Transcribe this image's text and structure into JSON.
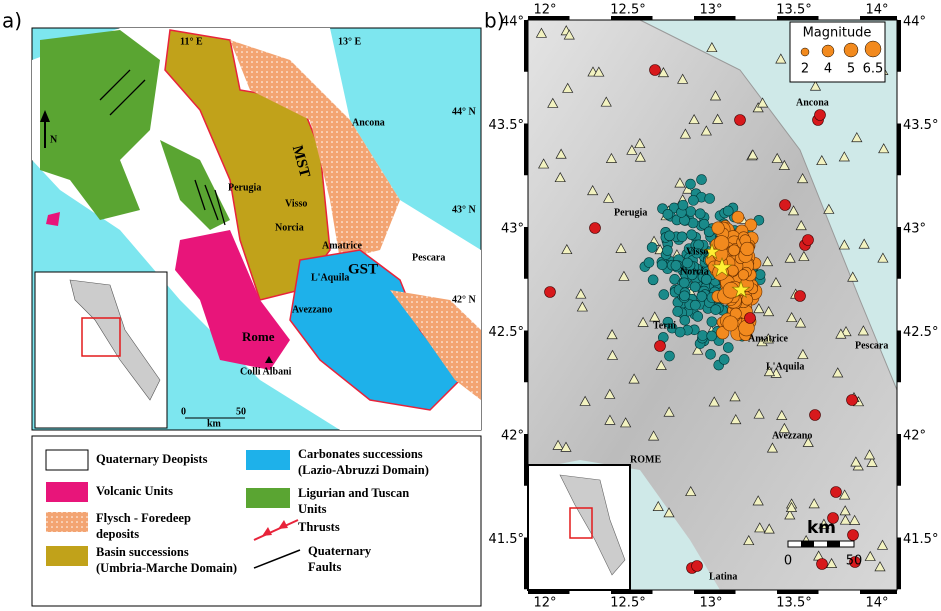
{
  "panel_a": {
    "label": "a)",
    "map_labels": {
      "lon_11": "11° E",
      "lon_13": "13° E",
      "lat_44": "44° N",
      "lat_43": "43° N",
      "lat_42": "42° N",
      "ancona": "Ancona",
      "mst": "MST",
      "gst": "GST",
      "perugia": "Perugia",
      "visso": "Visso",
      "norcia": "Norcia",
      "amatrice": "Amatrice",
      "pescara": "Pescara",
      "laquila": "L'Aquila",
      "avezzano": "Avezzano",
      "rome": "Rome",
      "colli_albani": "Colli Albani",
      "north": "N"
    },
    "scale": {
      "zero": "0",
      "unit": "km",
      "max": "50"
    },
    "legend": [
      {
        "lines": [
          "Quaternary Deopists"
        ]
      },
      {
        "lines": [
          "Volcanic Units"
        ]
      },
      {
        "lines": [
          "Flysch - Foredeep",
          "deposits"
        ]
      },
      {
        "lines": [
          "Basin successions",
          "(Umbria-Marche Domain)"
        ]
      },
      {
        "lines": [
          "Carbonates successions",
          "(Lazio-Abruzzi Domain)"
        ]
      },
      {
        "lines": [
          "Ligurian and Tuscan",
          "Units"
        ]
      },
      {
        "lines": [
          "Thrusts"
        ]
      },
      {
        "lines": [
          "Quaternary",
          "Faults"
        ]
      }
    ]
  },
  "panel_b": {
    "label": "b)",
    "lon_ticks": [
      "12°",
      "12.5°",
      "13°",
      "13.5°",
      "14°"
    ],
    "lat_ticks": [
      "44°",
      "43.5°",
      "43°",
      "42.5°",
      "42°",
      "41.5°"
    ],
    "magnitude": {
      "title": "Magnitude",
      "sizes": [
        "2",
        "4",
        "5",
        "6.5"
      ]
    },
    "places": {
      "ancona": "Ancona",
      "perugia": "Perugia",
      "visso": "Visso",
      "norcia": "Norcia",
      "terni": "Terni",
      "amatrice": "Amatrice",
      "laquila": "L'Aquila",
      "pescara": "Pescara",
      "avezzano": "Avezzano",
      "rome": "ROME",
      "latina": "Latina"
    },
    "scale": {
      "zero": "0",
      "unit": "km",
      "max": "50"
    }
  }
}
